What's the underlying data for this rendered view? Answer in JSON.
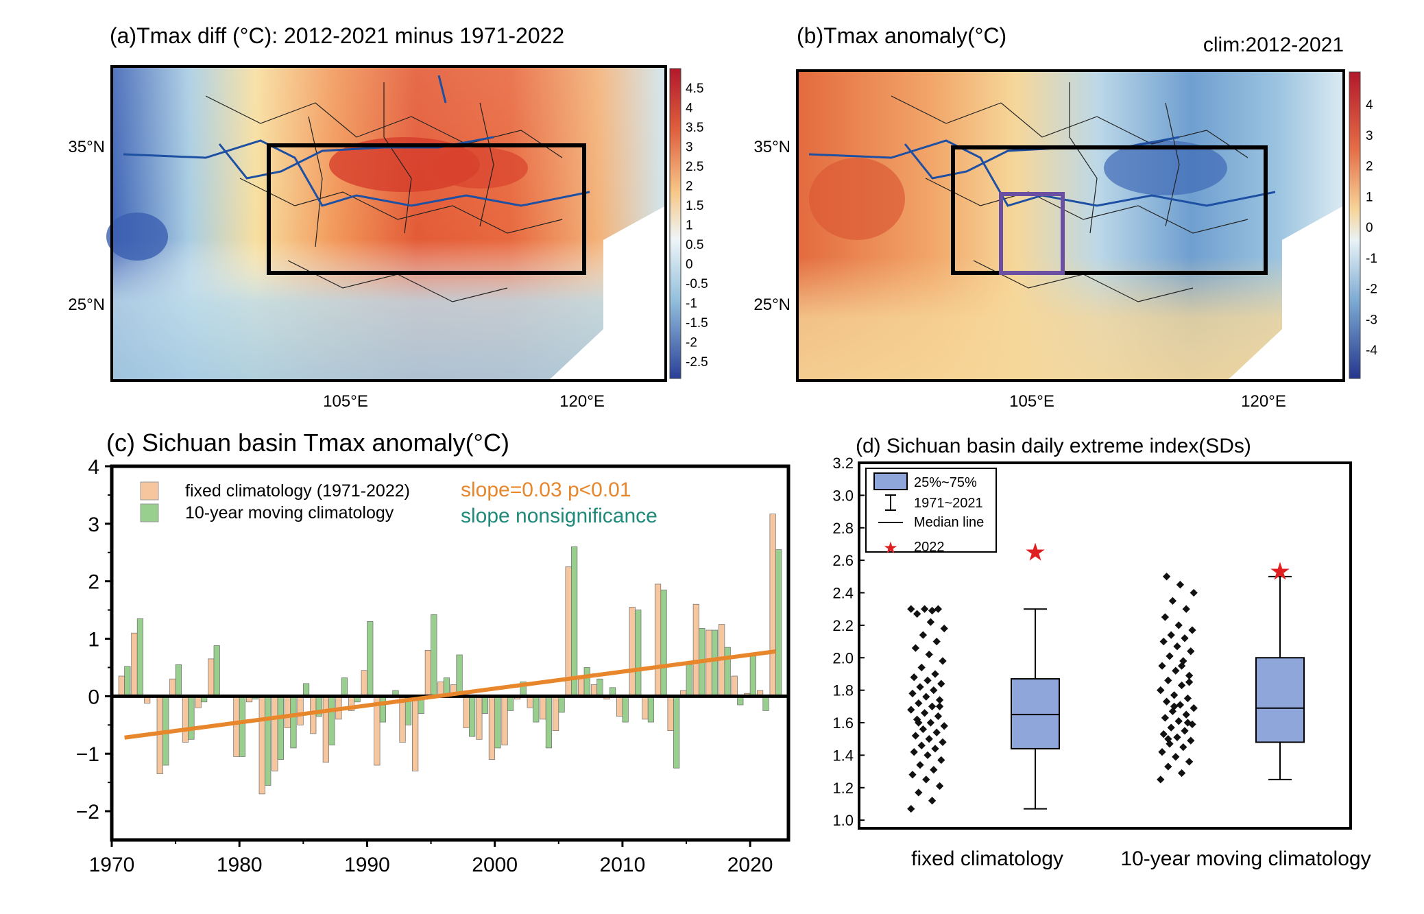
{
  "panel_a": {
    "title": "(a)Tmax diff (°C): 2012-2021 minus 1971-2022",
    "lat_labels": [
      "35°N",
      "25°N"
    ],
    "lon_labels": [
      "105°E",
      "120°E"
    ],
    "colorbar_labels": [
      "4.5",
      "4",
      "3.5",
      "3",
      "2.5",
      "2",
      "1.5",
      "1",
      "0.5",
      "0",
      "-0.5",
      "-1",
      "-1.5",
      "-2",
      "-2.5"
    ]
  },
  "panel_b": {
    "title": "(b)Tmax anomaly(°C)",
    "clim_label": "clim:2012-2021",
    "lat_labels": [
      "35°N",
      "25°N"
    ],
    "lon_labels": [
      "105°E",
      "120°E"
    ],
    "colorbar_labels": [
      "4",
      "3",
      "2",
      "1",
      "0",
      "-1",
      "-2",
      "-3",
      "-4"
    ]
  },
  "colors": {
    "fixed": "#f6c79f",
    "moving": "#99cf8e",
    "trend": "#e8862b",
    "slope_sig": "#e8862b",
    "slope_nonsig": "#1f8a7a",
    "box_fill": "#8ea6d9",
    "star": "#e02020"
  },
  "chart_data": [
    {
      "type": "bar",
      "title": "(c) Sichuan basin Tmax anomaly(°C)",
      "xlabel": "",
      "ylabel": "",
      "xlim": [
        1970,
        2023
      ],
      "ylim": [
        -2.5,
        4
      ],
      "x_ticks": [
        1970,
        1980,
        1990,
        2000,
        2010,
        2020
      ],
      "y_ticks": [
        -2,
        -1,
        0,
        1,
        2,
        3,
        4
      ],
      "x_tick_labels": [
        "1970",
        "1980",
        "1990",
        "2000",
        "2010",
        "2020"
      ],
      "y_tick_labels": [
        "−2",
        "−1",
        "0",
        "1",
        "2",
        "3",
        "4"
      ],
      "x": [
        1971,
        1972,
        1973,
        1974,
        1975,
        1976,
        1977,
        1978,
        1979,
        1980,
        1981,
        1982,
        1983,
        1984,
        1985,
        1986,
        1987,
        1988,
        1989,
        1990,
        1991,
        1992,
        1993,
        1994,
        1995,
        1996,
        1997,
        1998,
        1999,
        2000,
        2001,
        2002,
        2003,
        2004,
        2005,
        2006,
        2007,
        2008,
        2009,
        2010,
        2011,
        2012,
        2013,
        2014,
        2015,
        2016,
        2017,
        2018,
        2019,
        2020,
        2021,
        2022
      ],
      "series": [
        {
          "name": "fixed climatology (1971-2022)",
          "values": [
            0.35,
            1.1,
            -0.12,
            -1.35,
            0.3,
            -0.8,
            -0.2,
            0.65,
            0.0,
            -1.05,
            -0.1,
            -1.7,
            -1.3,
            -0.55,
            -0.5,
            -0.65,
            -1.15,
            -0.4,
            -0.25,
            0.45,
            -1.2,
            0.0,
            -0.8,
            -1.3,
            0.8,
            0.25,
            0.2,
            -0.55,
            -0.75,
            -1.1,
            -0.85,
            -0.05,
            -0.2,
            -0.4,
            -0.6,
            2.25,
            0.35,
            0.2,
            -0.05,
            -0.35,
            1.55,
            -0.4,
            1.95,
            -0.6,
            0.1,
            1.6,
            1.15,
            1.25,
            0.35,
            0.05,
            0.1,
            3.17
          ]
        },
        {
          "name": "10-year moving climatology",
          "values": [
            0.52,
            1.35,
            0.0,
            -1.2,
            0.55,
            -0.75,
            -0.1,
            0.88,
            0.0,
            -1.05,
            -0.05,
            -1.55,
            -1.1,
            -0.9,
            0.22,
            -0.35,
            -0.85,
            0.32,
            -0.1,
            1.3,
            -0.45,
            0.1,
            -0.5,
            -0.3,
            1.42,
            0.32,
            0.72,
            -0.7,
            -0.3,
            -0.9,
            -0.25,
            0.25,
            -0.45,
            -0.9,
            -0.28,
            2.6,
            0.5,
            0.3,
            0.15,
            -0.45,
            1.5,
            -0.45,
            1.85,
            -1.25,
            0.55,
            1.18,
            1.15,
            0.85,
            -0.15,
            0.72,
            -0.25,
            2.55
          ]
        }
      ],
      "trend": {
        "x": [
          1971,
          2022
        ],
        "y": [
          -0.72,
          0.78
        ]
      },
      "annotations": [
        "slope=0.03  p<0.01",
        "slope nonsignificance"
      ]
    },
    {
      "type": "box",
      "title": "(d) Sichuan basin daily extreme index(SDs)",
      "xlabel": "",
      "ylabel": "",
      "ylim": [
        0.95,
        3.2
      ],
      "y_ticks": [
        1.0,
        1.2,
        1.4,
        1.6,
        1.8,
        2.0,
        2.2,
        2.4,
        2.6,
        2.8,
        3.0,
        3.2
      ],
      "y_tick_labels": [
        "1.0",
        "1.2",
        "1.4",
        "1.6",
        "1.8",
        "2.0",
        "2.2",
        "2.4",
        "2.6",
        "2.8",
        "3.0",
        "3.2"
      ],
      "categories": [
        "fixed climatology",
        "10-year moving climatology"
      ],
      "boxes": [
        {
          "name": "fixed climatology",
          "whisker_low": 1.07,
          "q1": 1.44,
          "median": 1.65,
          "q3": 1.87,
          "whisker_high": 2.3,
          "value_2022": 2.65
        },
        {
          "name": "10-year moving climatology",
          "whisker_low": 1.25,
          "q1": 1.48,
          "median": 1.69,
          "q3": 2.0,
          "whisker_high": 2.5,
          "value_2022": 2.53
        }
      ],
      "points": [
        [
          1.07,
          1.12,
          1.17,
          1.21,
          1.25,
          1.28,
          1.31,
          1.34,
          1.37,
          1.4,
          1.42,
          1.44,
          1.46,
          1.48,
          1.5,
          1.52,
          1.54,
          1.56,
          1.58,
          1.6,
          1.62,
          1.64,
          1.66,
          1.68,
          1.7,
          1.72,
          1.74,
          1.76,
          1.78,
          1.8,
          1.82,
          1.84,
          1.86,
          1.88,
          1.9,
          1.94,
          1.98,
          2.02,
          2.06,
          2.1,
          2.14,
          2.18,
          2.22,
          2.27,
          2.3,
          2.3,
          2.3,
          2.29,
          1.6,
          1.7
        ],
        [
          1.25,
          1.29,
          1.33,
          1.36,
          1.39,
          1.42,
          1.45,
          1.47,
          1.49,
          1.51,
          1.53,
          1.55,
          1.57,
          1.59,
          1.61,
          1.63,
          1.65,
          1.67,
          1.69,
          1.71,
          1.73,
          1.75,
          1.77,
          1.8,
          1.83,
          1.86,
          1.89,
          1.92,
          1.95,
          1.98,
          2.01,
          2.04,
          2.07,
          2.1,
          2.12,
          2.14,
          2.17,
          2.2,
          2.25,
          2.3,
          2.35,
          2.4,
          2.45,
          2.5,
          1.6,
          1.7,
          1.8,
          1.95,
          1.5,
          1.85
        ]
      ],
      "legend": [
        "25%~75%",
        "1971~2021",
        "Median line",
        "2022"
      ]
    }
  ]
}
